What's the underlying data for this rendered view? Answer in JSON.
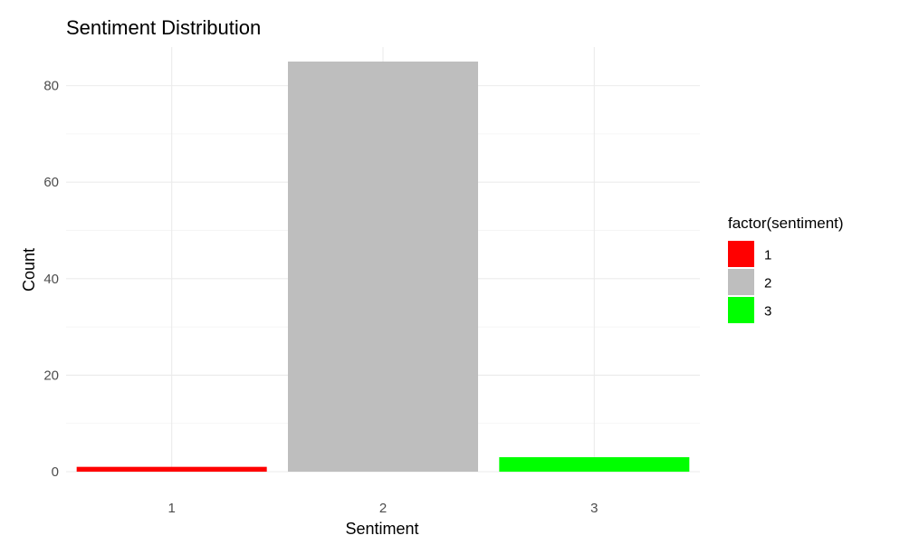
{
  "chart_data": {
    "type": "bar",
    "title": "Sentiment Distribution",
    "xlabel": "Sentiment",
    "ylabel": "Count",
    "categories": [
      "1",
      "2",
      "3"
    ],
    "values": [
      1,
      85,
      3
    ],
    "colors": [
      "#ff0000",
      "#bebebe",
      "#00ff00"
    ],
    "ylim": [
      0,
      88
    ],
    "yticks": [
      0,
      20,
      40,
      60,
      80
    ],
    "grid": true,
    "legend": {
      "title": "factor(sentiment)",
      "placement": "right",
      "items": [
        {
          "label": "1",
          "color": "#ff0000"
        },
        {
          "label": "2",
          "color": "#bebebe"
        },
        {
          "label": "3",
          "color": "#00ff00"
        }
      ]
    }
  }
}
